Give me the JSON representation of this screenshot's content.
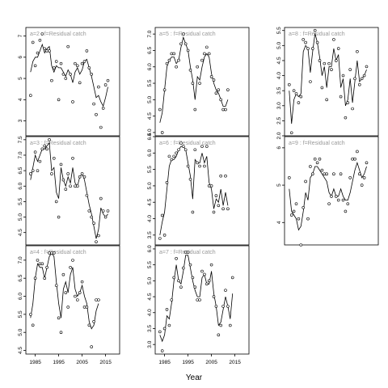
{
  "chart_data": {
    "type": "scatter",
    "title": "",
    "xlabel": "Year",
    "ylabel": "",
    "xlim": [
      1981,
      2021
    ],
    "x_ticks": [
      1985,
      1995,
      2005,
      2015
    ],
    "panels": [
      {
        "label": "a=2 : f=Residual catch",
        "ylim": [
          2.3,
          7.4
        ],
        "y_ticks": [
          3,
          4,
          5,
          6,
          7
        ],
        "x": [
          1983,
          1984,
          1985,
          1986,
          1987,
          1988,
          1989,
          1990,
          1991,
          1992,
          1993,
          1994,
          1995,
          1996,
          1997,
          1998,
          1999,
          2000,
          2001,
          2002,
          2003,
          2004,
          2005,
          2006,
          2007,
          2008,
          2009,
          2010,
          2011,
          2012,
          2013,
          2014,
          2015,
          2016
        ],
        "observed": [
          4.2,
          6.7,
          5.6,
          6.2,
          6.8,
          7.1,
          6.4,
          6.3,
          6.3,
          4.9,
          5.5,
          5.8,
          4.0,
          5.7,
          5.2,
          5.0,
          6.5,
          5.2,
          3.9,
          5.7,
          5.6,
          4.8,
          5.7,
          5.8,
          6.3,
          5.5,
          5.2,
          3.8,
          3.3,
          4.6,
          2.7,
          3.6,
          4.7,
          4.9
        ],
        "fitted": [
          5.3,
          5.8,
          6.0,
          6.0,
          6.3,
          6.6,
          6.2,
          6.4,
          6.5,
          5.6,
          5.3,
          5.6,
          5.5,
          5.5,
          5.3,
          5.1,
          5.4,
          5.2,
          4.8,
          5.3,
          5.5,
          5.2,
          5.4,
          5.8,
          5.9,
          5.5,
          5.1,
          4.6,
          4.1,
          4.2,
          3.9,
          3.7,
          4.1,
          4.6
        ]
      },
      {
        "label": "a=3 : f=Residual catch",
        "ylim": [
          4.1,
          7.6
        ],
        "y_ticks": [
          4.5,
          5.0,
          5.5,
          6.0,
          6.5,
          7.0,
          7.5
        ],
        "x": [
          1983,
          1984,
          1985,
          1986,
          1987,
          1988,
          1989,
          1990,
          1991,
          1992,
          1993,
          1994,
          1995,
          1996,
          1997,
          1998,
          1999,
          2000,
          2001,
          2002,
          2003,
          2004,
          2005,
          2006,
          2007,
          2008,
          2009,
          2010,
          2011,
          2012,
          2013,
          2014,
          2015,
          2016
        ],
        "observed": [
          6.4,
          6.5,
          7.1,
          6.5,
          6.8,
          7.2,
          7.3,
          7.2,
          7.5,
          6.4,
          6.9,
          5.5,
          5.0,
          6.7,
          6.2,
          5.9,
          6.4,
          6.0,
          6.9,
          6.0,
          6.0,
          6.3,
          6.4,
          6.3,
          5.7,
          5.2,
          5.0,
          4.8,
          4.2,
          4.4,
          5.6,
          5.2,
          5.0,
          5.2
        ],
        "fitted": [
          6.2,
          6.6,
          7.0,
          6.8,
          7.0,
          7.2,
          7.2,
          7.3,
          7.4,
          6.5,
          6.6,
          5.8,
          5.6,
          6.6,
          6.2,
          6.0,
          6.3,
          6.1,
          6.6,
          6.1,
          6.0,
          6.3,
          6.4,
          6.2,
          5.8,
          5.4,
          5.1,
          4.7,
          4.3,
          4.6,
          5.3,
          5.1,
          5.0,
          5.1
        ]
      },
      {
        "label": "a=4 : f=Residual catch",
        "ylim": [
          4.4,
          7.4
        ],
        "y_ticks": [
          4.5,
          5.0,
          5.5,
          6.0,
          6.5,
          7.0
        ],
        "x": [
          1983,
          1984,
          1985,
          1986,
          1987,
          1988,
          1989,
          1990,
          1991,
          1992,
          1993,
          1994,
          1995,
          1996,
          1997,
          1998,
          1999,
          2000,
          2001,
          2002,
          2003,
          2004,
          2005,
          2006,
          2007,
          2008,
          2009,
          2010,
          2011,
          2012
        ],
        "observed": [
          5.5,
          5.2,
          6.5,
          7.0,
          6.9,
          6.9,
          6.5,
          6.8,
          7.2,
          7.2,
          7.2,
          6.3,
          5.4,
          5.0,
          6.6,
          6.1,
          5.7,
          6.8,
          7.0,
          6.0,
          5.9,
          6.1,
          6.4,
          5.7,
          5.7,
          5.2,
          4.6,
          5.3,
          5.9,
          5.9
        ],
        "fitted": [
          5.4,
          5.8,
          6.5,
          6.9,
          6.8,
          6.8,
          6.5,
          6.8,
          7.1,
          7.2,
          7.1,
          6.4,
          5.8,
          5.4,
          6.2,
          6.4,
          6.1,
          6.6,
          6.8,
          6.2,
          6.0,
          6.1,
          6.3,
          6.0,
          5.8,
          5.3,
          5.1,
          5.2,
          5.6,
          5.8
        ]
      },
      {
        "label": "a=5 : f=Residual catch",
        "ylim": [
          3.9,
          7.2
        ],
        "y_ticks": [
          4.0,
          4.5,
          5.0,
          5.5,
          6.0,
          6.5,
          7.0
        ],
        "x": [
          1983,
          1984,
          1985,
          1986,
          1987,
          1988,
          1989,
          1990,
          1991,
          1992,
          1993,
          1994,
          1995,
          1996,
          1997,
          1998,
          1999,
          2000,
          2001,
          2002,
          2003,
          2004,
          2005,
          2006,
          2007,
          2008,
          2009,
          2010,
          2011,
          2012
        ],
        "observed": [
          4.7,
          4.0,
          5.3,
          6.1,
          6.2,
          6.4,
          6.4,
          6.0,
          6.2,
          6.7,
          7.0,
          6.7,
          6.5,
          5.9,
          5.5,
          4.7,
          6.0,
          5.5,
          6.2,
          6.4,
          6.6,
          6.4,
          5.7,
          5.6,
          5.2,
          5.3,
          5.0,
          4.7,
          4.7,
          5.3
        ],
        "fitted": [
          4.3,
          4.6,
          5.3,
          6.0,
          6.2,
          6.3,
          6.3,
          6.1,
          6.2,
          6.6,
          6.9,
          6.7,
          6.5,
          6.0,
          5.6,
          5.0,
          5.7,
          5.6,
          6.0,
          6.3,
          6.4,
          6.3,
          5.8,
          5.5,
          5.3,
          5.2,
          5.0,
          4.8,
          4.8,
          5.0
        ]
      },
      {
        "label": "a=6 : f=Residual catch",
        "ylim": [
          3.2,
          6.5
        ],
        "y_ticks": [
          3.5,
          4.0,
          4.5,
          5.0,
          5.5,
          6.0,
          6.5
        ],
        "x": [
          1983,
          1984,
          1985,
          1986,
          1987,
          1988,
          1989,
          1990,
          1991,
          1992,
          1993,
          1994,
          1995,
          1996,
          1997,
          1998,
          1999,
          2000,
          2001,
          2002,
          2003,
          2004,
          2005,
          2006,
          2007,
          2008,
          2009,
          2010,
          2011,
          2012
        ],
        "observed": [
          3.4,
          4.1,
          3.5,
          5.1,
          5.9,
          5.8,
          5.9,
          6.0,
          6.1,
          6.3,
          6.2,
          6.1,
          5.6,
          5.2,
          4.2,
          6.1,
          5.7,
          5.6,
          6.2,
          5.6,
          6.2,
          5.0,
          5.0,
          4.2,
          4.7,
          4.4,
          5.3,
          4.3,
          5.3,
          4.3
        ],
        "fitted": [
          3.5,
          3.9,
          4.2,
          4.9,
          5.6,
          5.8,
          5.8,
          5.9,
          6.1,
          6.2,
          6.2,
          6.1,
          5.7,
          5.3,
          4.6,
          5.8,
          5.7,
          5.7,
          6.0,
          5.7,
          5.9,
          5.1,
          4.9,
          4.3,
          4.6,
          4.5,
          4.9,
          4.4,
          4.8,
          4.4
        ]
      },
      {
        "label": "a=7 : f=Residual catch",
        "ylim": [
          2.7,
          6.1
        ],
        "y_ticks": [
          3.0,
          3.5,
          4.0,
          4.5,
          5.0,
          5.5,
          6.0
        ],
        "x": [
          1983,
          1984,
          1985,
          1986,
          1987,
          1988,
          1989,
          1990,
          1991,
          1992,
          1993,
          1994,
          1995,
          1996,
          1997,
          1998,
          1999,
          2000,
          2001,
          2002,
          2003,
          2004,
          2005,
          2006,
          2007,
          2008,
          2009,
          2010,
          2011,
          2012,
          2013,
          2014
        ],
        "observed": [
          3.4,
          2.8,
          3.5,
          4.1,
          3.6,
          4.4,
          5.1,
          5.7,
          5.0,
          4.8,
          5.4,
          5.9,
          5.9,
          5.5,
          5.1,
          4.8,
          4.4,
          4.4,
          5.3,
          5.2,
          4.9,
          5.0,
          5.5,
          4.5,
          4.2,
          3.3,
          3.6,
          4.2,
          4.7,
          4.2,
          3.6,
          5.1
        ],
        "fitted": [
          3.3,
          3.1,
          3.3,
          3.9,
          3.8,
          4.3,
          5.0,
          5.5,
          5.0,
          4.9,
          5.3,
          5.8,
          5.8,
          5.4,
          5.0,
          4.7,
          4.5,
          4.5,
          5.1,
          5.2,
          4.9,
          4.9,
          5.3,
          4.6,
          4.2,
          3.6,
          3.7,
          4.1,
          4.5,
          4.2,
          3.8,
          4.6
        ]
      },
      {
        "label": "a=8 : f=Residual catch",
        "ylim": [
          2.0,
          5.6
        ],
        "y_ticks": [
          2.0,
          2.5,
          3.0,
          3.5,
          4.0,
          4.5,
          5.0,
          5.5
        ],
        "x": [
          1983,
          1984,
          1985,
          1986,
          1987,
          1988,
          1989,
          1990,
          1991,
          1992,
          1993,
          1994,
          1995,
          1996,
          1997,
          1998,
          1999,
          2000,
          2001,
          2002,
          2003,
          2004,
          2005,
          2006,
          2007,
          2008,
          2009,
          2010,
          2011,
          2012,
          2013,
          2014,
          2015,
          2016
        ],
        "observed": [
          3.7,
          2.1,
          3.5,
          3.4,
          3.1,
          3.3,
          5.2,
          5.1,
          4.9,
          3.8,
          4.9,
          5.5,
          5.1,
          4.5,
          3.6,
          4.4,
          3.2,
          4.4,
          4.2,
          5.2,
          4.5,
          4.9,
          3.3,
          4.0,
          2.6,
          3.1,
          4.2,
          2.9,
          3.9,
          4.8,
          3.7,
          3.9,
          4.0,
          4.3
        ],
        "fitted": [
          3.5,
          2.4,
          3.2,
          3.4,
          3.3,
          3.4,
          4.8,
          5.0,
          4.9,
          4.1,
          4.8,
          5.4,
          5.1,
          4.6,
          4.0,
          4.3,
          3.6,
          4.3,
          4.3,
          4.9,
          4.5,
          4.7,
          3.6,
          3.9,
          3.0,
          3.2,
          3.9,
          3.1,
          3.8,
          4.5,
          3.8,
          3.9,
          4.0,
          4.2
        ]
      },
      {
        "label": "a=9 : f=Residual catch",
        "ylim": [
          3.4,
          6.3
        ],
        "y_ticks": [
          4,
          5,
          6
        ],
        "x": [
          1983,
          1984,
          1985,
          1986,
          1987,
          1988,
          1989,
          1990,
          1991,
          1992,
          1993,
          1994,
          1995,
          1996,
          1997,
          1998,
          1999,
          2000,
          2001,
          2002,
          2003,
          2004,
          2005,
          2006,
          2007,
          2008,
          2009,
          2010,
          2011,
          2012,
          2013,
          2014,
          2015,
          2016
        ],
        "observed": [
          5.2,
          4.2,
          4.3,
          4.5,
          4.1,
          3.4,
          4.4,
          5.1,
          4.1,
          5.5,
          5.3,
          5.7,
          5.6,
          5.7,
          5.4,
          5.3,
          5.3,
          4.5,
          4.7,
          5.3,
          4.7,
          4.6,
          5.3,
          4.6,
          4.3,
          4.5,
          5.2,
          5.7,
          5.7,
          5.9,
          5.3,
          5.0,
          5.2,
          5.6
        ],
        "fitted": [
          4.9,
          4.3,
          4.2,
          4.1,
          3.8,
          3.9,
          4.3,
          4.8,
          4.6,
          5.2,
          5.3,
          5.5,
          5.5,
          5.4,
          5.3,
          5.2,
          5.1,
          4.8,
          4.7,
          4.9,
          4.7,
          4.7,
          4.9,
          4.7,
          4.6,
          4.6,
          4.8,
          5.1,
          5.4,
          5.6,
          5.4,
          5.2,
          5.3,
          5.5
        ]
      }
    ]
  }
}
